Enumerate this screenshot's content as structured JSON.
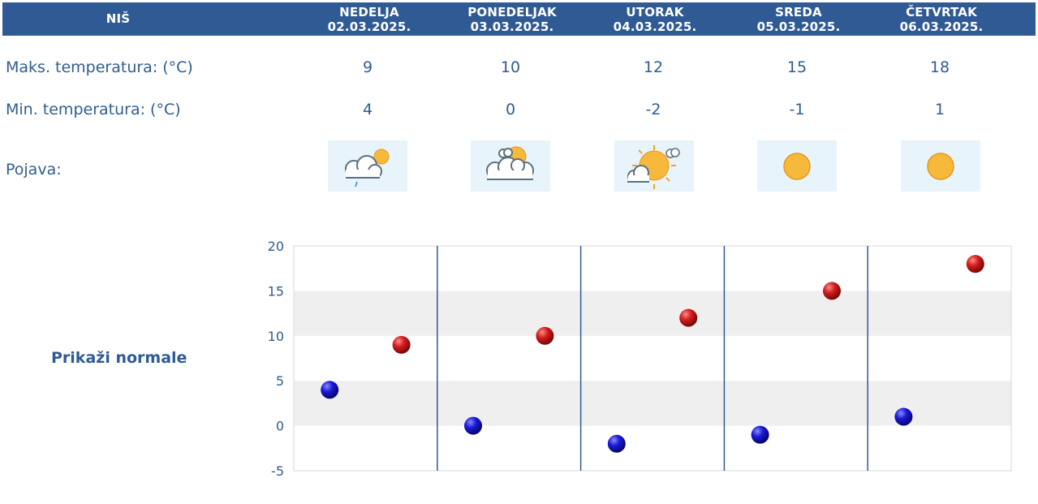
{
  "header": {
    "city": "NIŠ",
    "days": [
      {
        "name": "NEDELJA",
        "date": "02.03.2025."
      },
      {
        "name": "PONEDELJAK",
        "date": "03.03.2025."
      },
      {
        "name": "UTORAK",
        "date": "04.03.2025."
      },
      {
        "name": "SREDA",
        "date": "05.03.2025."
      },
      {
        "name": "ČETVRTAK",
        "date": "06.03.2025."
      }
    ]
  },
  "rows": {
    "max_label": "Maks. temperatura: (°C)",
    "max_values": [
      "9",
      "10",
      "12",
      "15",
      "18"
    ],
    "min_label": "Min. temperatura: (°C)",
    "min_values": [
      "4",
      "0",
      "-2",
      "-1",
      "1"
    ],
    "phenomenon_label": "Pojava:",
    "icons": [
      "partly-cloudy-rain-icon",
      "partly-cloudy-icon",
      "mostly-sunny-icon",
      "sunny-icon",
      "sunny-icon"
    ]
  },
  "normals_link": "Prikaži normale",
  "chart_data": {
    "type": "scatter",
    "categories": [
      "02.03.2025.",
      "03.03.2025.",
      "04.03.2025.",
      "05.03.2025.",
      "06.03.2025."
    ],
    "series": [
      {
        "values": [
          4,
          0,
          -2,
          -1,
          1
        ],
        "color": "#1a1acc"
      },
      {
        "values": [
          9,
          10,
          12,
          15,
          18
        ],
        "color": "#c41a1a"
      }
    ],
    "ylim": [
      -5,
      20
    ],
    "yticks": [
      "20",
      "15",
      "10",
      "5",
      "0",
      "-5"
    ],
    "grid": true,
    "band_color": "#efefef"
  }
}
